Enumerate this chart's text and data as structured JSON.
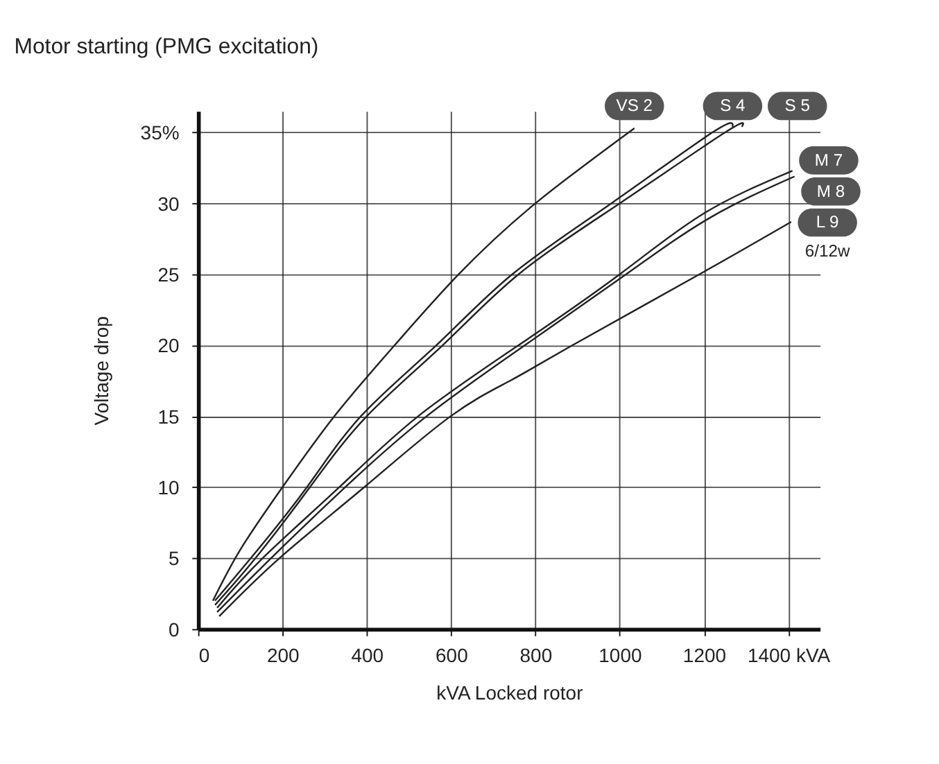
{
  "chart_data": {
    "type": "line",
    "title": "Motor starting (PMG excitation)",
    "xlabel": "kVA Locked rotor",
    "ylabel": "Voltage drop",
    "xlim": [
      0,
      1475
    ],
    "ylim": [
      0,
      36.5
    ],
    "xticks": [
      0,
      200,
      400,
      600,
      800,
      1000,
      1200,
      {
        "value": 1400,
        "label": "1400 kVA"
      }
    ],
    "yticks": [
      0,
      5,
      10,
      15,
      20,
      25,
      30,
      {
        "value": 35,
        "label": "35%"
      }
    ],
    "grid": true,
    "marker": "none",
    "line_style": "solid",
    "series": [
      {
        "name": "VS 2",
        "color": "#222222",
        "x": [
          35,
          100,
          200,
          323,
          466,
          618,
          800,
          1035
        ],
        "values": [
          2.0,
          5.6,
          10,
          15,
          20,
          25,
          30,
          35.3
        ]
      },
      {
        "name": "S 4",
        "color": "#222222",
        "x": [
          40,
          125,
          258,
          386,
          565,
          745,
          980,
          1220,
          1268
        ],
        "values": [
          2.0,
          5,
          10,
          15,
          20,
          25,
          30,
          35,
          35.4
        ]
      },
      {
        "name": "S 5",
        "color": "#222222",
        "x": [
          40,
          136,
          265,
          400,
          580,
          760,
          1000,
          1250,
          1290
        ],
        "values": [
          1.7,
          5,
          10,
          15,
          20,
          25,
          30,
          35,
          35.4
        ]
      },
      {
        "name": "M 7",
        "color": "#222222",
        "x": [
          45,
          153,
          335,
          522,
          760,
          1000,
          1200,
          1410
        ],
        "values": [
          1.5,
          5,
          10,
          15,
          20,
          25,
          29.3,
          32.3
        ]
      },
      {
        "name": "M 8",
        "color": "#222222",
        "x": [
          45,
          173,
          349,
          542,
          775,
          1015,
          1215,
          1415
        ],
        "values": [
          1.2,
          5,
          10,
          15,
          20,
          25,
          29,
          31.9
        ]
      },
      {
        "name": "L 9",
        "color": "#222222",
        "x": [
          50,
          193,
          394,
          599,
          740,
          888,
          1189,
          1407
        ],
        "values": [
          0.9,
          5,
          10,
          15,
          17.5,
          20,
          25,
          28.7
        ]
      }
    ],
    "annotations": [
      "6/12w"
    ]
  }
}
